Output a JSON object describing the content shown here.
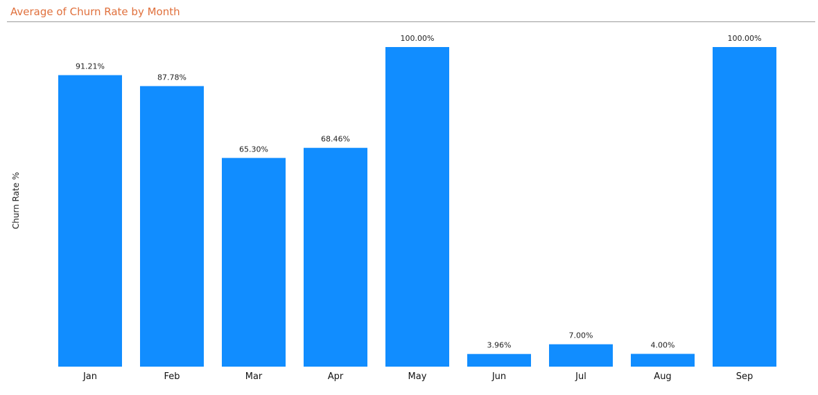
{
  "title": "Average of Churn Rate by Month",
  "colors": {
    "title": "#e0703c",
    "bar": "#118dff",
    "rule": "#9a9a9a"
  },
  "chart_data": {
    "type": "bar",
    "title": "Average of Churn Rate by Month",
    "xlabel": "",
    "ylabel": "Churn Rate %",
    "categories": [
      "Jan",
      "Feb",
      "Mar",
      "Apr",
      "May",
      "Jun",
      "Jul",
      "Aug",
      "Sep"
    ],
    "values": [
      91.21,
      87.78,
      65.3,
      68.46,
      100.0,
      3.96,
      7.0,
      4.0,
      100.0
    ],
    "value_labels": [
      "91.21%",
      "87.78%",
      "65.30%",
      "68.46%",
      "100.00%",
      "3.96%",
      "7.00%",
      "4.00%",
      "100.00%"
    ],
    "ylim": [
      0,
      100
    ],
    "grid": false,
    "legend": "none"
  }
}
